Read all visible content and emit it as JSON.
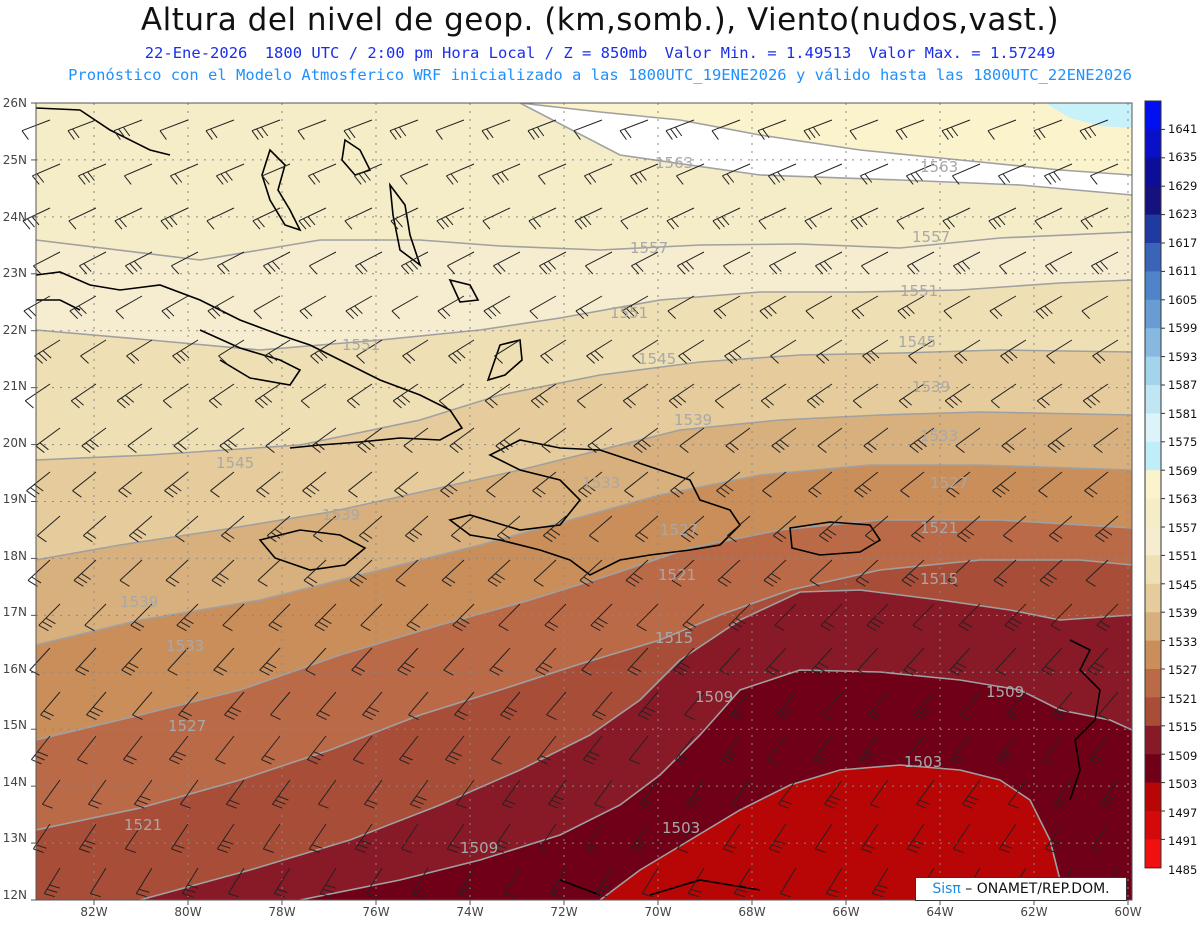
{
  "header": {
    "title": "Altura del nivel de geop. (km,somb.), Viento(nudos,vast.)",
    "date": "22-Ene-2026",
    "time": "1800 UTC / 2:00 pm Hora Local / Z = 850mb",
    "min": "Valor Min. = 1.49513",
    "max": "Valor Max. = 1.57249",
    "model_line": "Pronóstico con el Modelo Atmosferico WRF inicializado a las 1800UTC_19ENE2026 y válido hasta las  1800UTC_22ENE2026"
  },
  "map": {
    "lat_labels": [
      "26N",
      "25N",
      "24N",
      "23N",
      "22N",
      "21N",
      "20N",
      "19N",
      "18N",
      "17N",
      "16N",
      "15N",
      "14N",
      "13N",
      "12N"
    ],
    "lon_labels": [
      "82W",
      "80W",
      "78W",
      "76W",
      "74W",
      "72W",
      "70W",
      "68W",
      "66W",
      "64W",
      "62W",
      "60W"
    ],
    "contour_labels": [
      "1563",
      "1563",
      "1557",
      "1557",
      "1551",
      "1551",
      "1551",
      "1545",
      "1545",
      "1545",
      "1539",
      "1539",
      "1539",
      "1533",
      "1533",
      "1527",
      "1527",
      "1521",
      "1521",
      "1515",
      "1515",
      "1509",
      "1509",
      "1509",
      "1503",
      "1503",
      "1539",
      "1533",
      "1527",
      "1521"
    ],
    "colors": {
      "1485": "#f01010",
      "1491": "#d40a0a",
      "1497": "#b80505",
      "1503": "#700018",
      "1509": "#881a28",
      "1515": "#a84e38",
      "1521": "#bb6a48",
      "1527": "#c98e5a",
      "1533": "#d8b07e",
      "1539": "#e6cc9c",
      "1545": "#efdfb4",
      "1551": "#f6ecd0",
      "1557": "#f5ecc8",
      "1563": "#fbf3cc",
      "1569": "#ffffff"
    }
  },
  "colorbar": {
    "labels": [
      "1641",
      "1635",
      "1629",
      "1623",
      "1617",
      "1611",
      "1605",
      "1599",
      "1593",
      "1587",
      "1581",
      "1575",
      "1569",
      "1563",
      "1557",
      "1551",
      "1545",
      "1539",
      "1533",
      "1527",
      "1521",
      "1515",
      "1509",
      "1503",
      "1497",
      "1491",
      "1485"
    ],
    "colors": [
      "#0010f0",
      "#0a10c8",
      "#0c0e9a",
      "#15127e",
      "#1f3aa0",
      "#3a64b8",
      "#4f84c8",
      "#6a9cd4",
      "#86b8e0",
      "#a4d4ec",
      "#bfe6f2",
      "#dcf3fa",
      "#c0eef8",
      "#fbf3cc",
      "#f5ecc8",
      "#f6ecd0",
      "#efdfb4",
      "#e6cc9c",
      "#d8b07e",
      "#c98e5a",
      "#bb6a48",
      "#a84e38",
      "#881a28",
      "#700018",
      "#b80505",
      "#d40a0a",
      "#f01010"
    ]
  },
  "credit": {
    "logo": "Sisπ",
    "org": " – ONAMET/REP.DOM."
  }
}
